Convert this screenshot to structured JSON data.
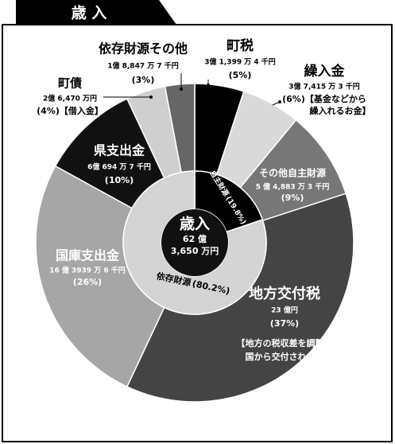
{
  "chart_data": {
    "type": "donut",
    "title": "歳 入",
    "center": {
      "title": "歳入",
      "amount": [
        "62 億",
        "3,650 万円"
      ]
    },
    "series": [
      {
        "name": "町税",
        "amount": "3億 1,399 万 4 千円",
        "values": 5,
        "value_labels": "(5%)",
        "color": "#000000"
      },
      {
        "name": "繰入金",
        "amount": "3億 7,415 万 3 千円",
        "values": 6,
        "value_labels": "(6%)",
        "note": [
          "【基金などから",
          "繰入れるお金】"
        ],
        "color": "#d9d9d9"
      },
      {
        "name": "その他自主財源",
        "amount": "5 億 4,883 万 3 千円",
        "values": 9,
        "value_labels": "(9%)",
        "color": "#777777"
      },
      {
        "name": "地方交付税",
        "amount": "23 億円",
        "values": 37,
        "value_labels": "(37%)",
        "note": [
          "【地方の税収差を調整し",
          "国から交付される】"
        ],
        "color": "#444444"
      },
      {
        "name": "国庫支出金",
        "amount": "16 億 3939 万 6 千円",
        "values": 26,
        "value_labels": "(26%)",
        "color": "#a6a6a6"
      },
      {
        "name": "県支出金",
        "amount": "6億 694 万 7 千円",
        "values": 10,
        "value_labels": "(10%)",
        "color": "#111111"
      },
      {
        "name": "町債",
        "amount": "2億 6,470 万円",
        "values": 4,
        "value_labels": "(4%)",
        "note": [
          "【借入金】"
        ],
        "color": "#cfcfcf"
      },
      {
        "name": "依存財源その他",
        "amount": "1億 8,847 万 7 千円",
        "values": 3,
        "value_labels": "(3%)",
        "color": "#666666"
      }
    ],
    "inner": [
      {
        "name": "自主財源",
        "values": 19.8,
        "value_labels": "(19.8%)",
        "color": "#000000"
      },
      {
        "name": "依存財源",
        "values": 80.2,
        "value_labels": "(80.2%)",
        "color": "#d4d4d4"
      }
    ]
  }
}
